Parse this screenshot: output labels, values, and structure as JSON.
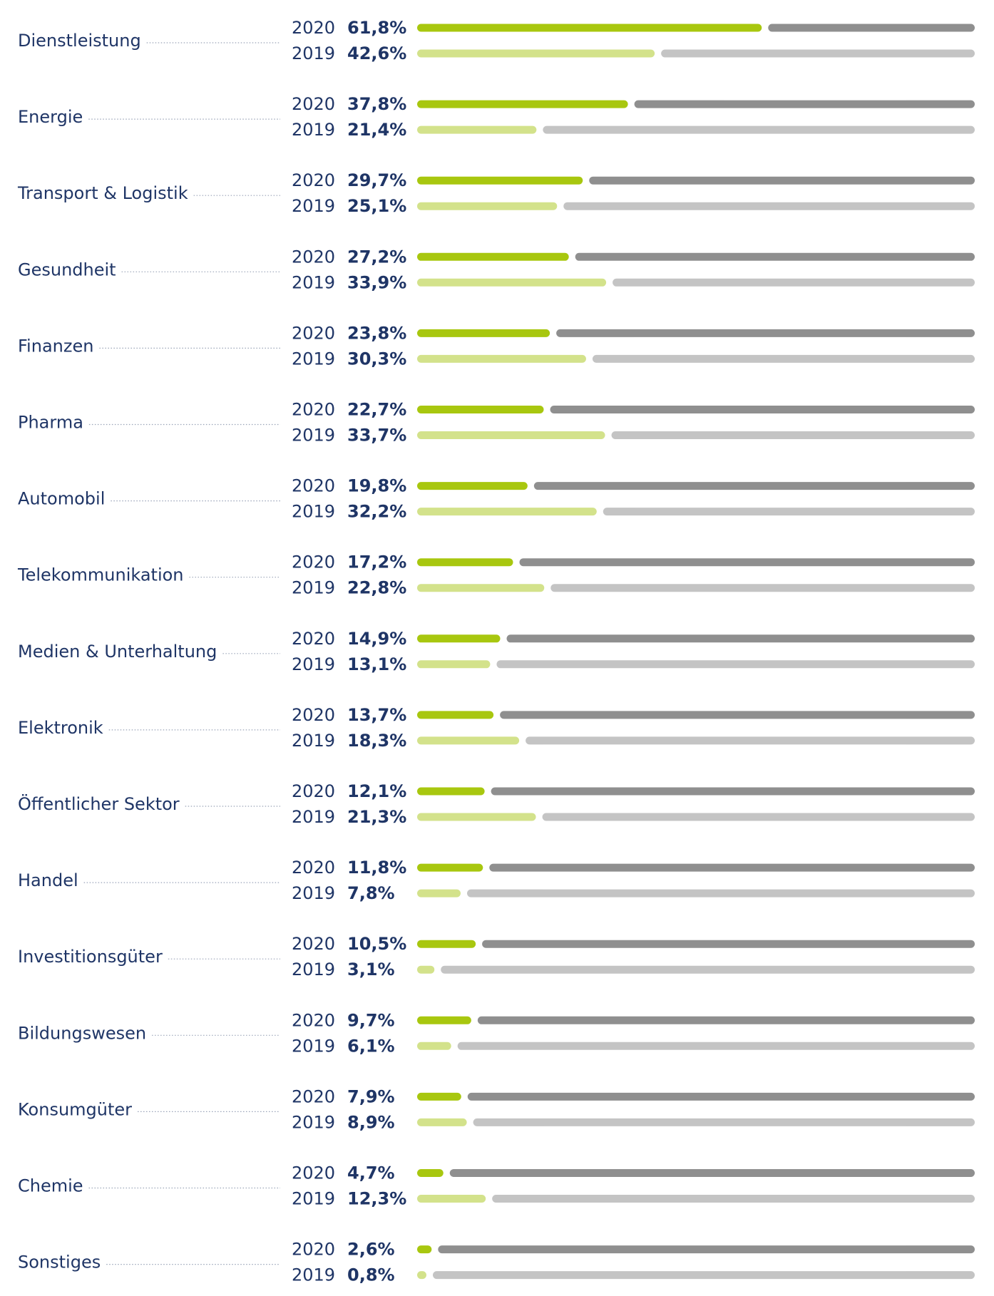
{
  "chart_data": {
    "type": "bar",
    "years": [
      "2020",
      "2019"
    ],
    "xlim": [
      0,
      100
    ],
    "colors": {
      "fill_2020": "#a8c70f",
      "fill_2019": "#d3e28b",
      "rest_2020": "#8f8f8f",
      "rest_2019": "#c4c4c4"
    },
    "categories": [
      "Dienstleistung",
      "Energie",
      "Transport & Logistik",
      "Gesundheit",
      "Finanzen",
      "Pharma",
      "Automobil",
      "Telekommunikation",
      "Medien & Unterhaltung",
      "Elektronik",
      "Öffentlicher Sektor",
      "Handel",
      "Investitionsgüter",
      "Bildungswesen",
      "Konsumgüter",
      "Chemie",
      "Sonstiges"
    ],
    "series": [
      {
        "name": "2020",
        "values": [
          61.8,
          37.8,
          29.7,
          27.2,
          23.8,
          22.7,
          19.8,
          17.2,
          14.9,
          13.7,
          12.1,
          11.8,
          10.5,
          9.7,
          7.9,
          4.7,
          2.6
        ],
        "labels": [
          "61,8%",
          "37,8%",
          "29,7%",
          "27,2%",
          "23,8%",
          "22,7%",
          "19,8%",
          "17,2%",
          "14,9%",
          "13,7%",
          "12,1%",
          "11,8%",
          "10,5%",
          "9,7%",
          "7,9%",
          "4,7%",
          "2,6%"
        ]
      },
      {
        "name": "2019",
        "values": [
          42.6,
          21.4,
          25.1,
          33.9,
          30.3,
          33.7,
          32.2,
          22.8,
          13.1,
          18.3,
          21.3,
          7.8,
          3.1,
          6.1,
          8.9,
          12.3,
          0.8
        ],
        "labels": [
          "42,6%",
          "21,4%",
          "25,1%",
          "33,9%",
          "30,3%",
          "33,7%",
          "32,2%",
          "22,8%",
          "13,1%",
          "18,3%",
          "21,3%",
          "7,8%",
          "3,1%",
          "6,1%",
          "8,9%",
          "12,3%",
          "0,8%"
        ]
      }
    ]
  }
}
